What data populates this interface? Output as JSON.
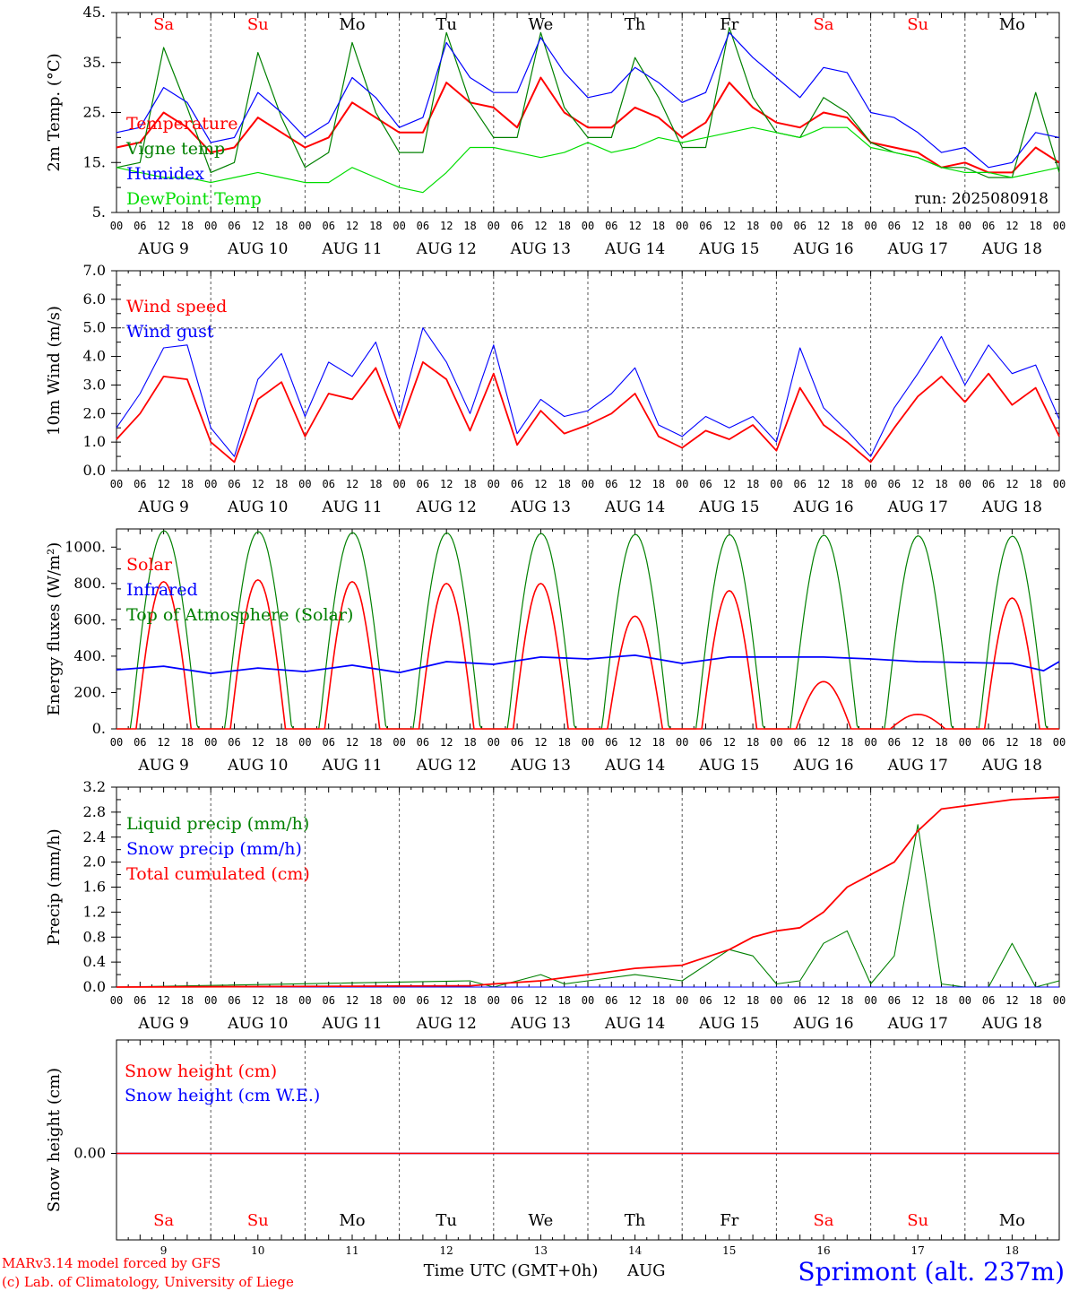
{
  "footer": {
    "credit_line1": "MARv3.14 model forced by GFS",
    "credit_line2": "(c) Lab. of Climatology, University of Liege",
    "xaxis_title": "Time UTC (GMT+0h)",
    "month": "AUG",
    "location": "Sprimont (alt. 237m)"
  },
  "colors": {
    "red": "#ff0000",
    "green": "#008000",
    "blue": "#0000ff",
    "lightgreen": "#00dd00",
    "grid": "#555555"
  },
  "days": [
    {
      "abbr": "Sa",
      "date": "AUG  9",
      "num": "9",
      "weekend": true
    },
    {
      "abbr": "Su",
      "date": "AUG 10",
      "num": "10",
      "weekend": true
    },
    {
      "abbr": "Mo",
      "date": "AUG 11",
      "num": "11",
      "weekend": false
    },
    {
      "abbr": "Tu",
      "date": "AUG 12",
      "num": "12",
      "weekend": false
    },
    {
      "abbr": "We",
      "date": "AUG 13",
      "num": "13",
      "weekend": false
    },
    {
      "abbr": "Th",
      "date": "AUG 14",
      "num": "14",
      "weekend": false
    },
    {
      "abbr": "Fr",
      "date": "AUG 15",
      "num": "15",
      "weekend": false
    },
    {
      "abbr": "Sa",
      "date": "AUG 16",
      "num": "16",
      "weekend": true
    },
    {
      "abbr": "Su",
      "date": "AUG 17",
      "num": "17",
      "weekend": true
    },
    {
      "abbr": "Mo",
      "date": "AUG 18",
      "num": "18",
      "weekend": false
    }
  ],
  "hour_ticks": [
    "00",
    "06",
    "12",
    "18"
  ],
  "chart_data": [
    {
      "type": "line",
      "id": "temp",
      "ylabel": "2m Temp. (°C)",
      "ylim": [
        5,
        45
      ],
      "yticks": [
        {
          "v": 45,
          "label": "45."
        },
        {
          "v": 35,
          "label": "35."
        },
        {
          "v": 25,
          "label": "25."
        },
        {
          "v": 15,
          "label": "15."
        },
        {
          "v": 5,
          "label": "5."
        }
      ],
      "annotation": "run: 2025080918",
      "x_hours": [
        0,
        6,
        12,
        18,
        24,
        30,
        36,
        42,
        48,
        54,
        60,
        66,
        72,
        78,
        84,
        90,
        96,
        102,
        108,
        114,
        120,
        126,
        132,
        138,
        144,
        150,
        156,
        162,
        168,
        174,
        180,
        186,
        192,
        198,
        204,
        210,
        216,
        222,
        228,
        234,
        240
      ],
      "series": [
        {
          "name": "Temperature",
          "color": "red",
          "values": [
            18,
            19,
            25,
            22,
            17,
            18,
            24,
            21,
            18,
            20,
            27,
            24,
            21,
            21,
            31,
            27,
            26,
            22,
            32,
            25,
            22,
            22,
            26,
            24,
            20,
            23,
            31,
            26,
            23,
            22,
            25,
            24,
            19,
            18,
            17,
            14,
            15,
            13,
            13,
            18,
            15
          ]
        },
        {
          "name": "Vigne temp",
          "color": "green",
          "values": [
            14,
            15,
            38,
            26,
            13,
            15,
            37,
            24,
            14,
            17,
            39,
            25,
            17,
            17,
            41,
            27,
            20,
            20,
            41,
            26,
            20,
            20,
            36,
            28,
            18,
            18,
            42,
            28,
            21,
            20,
            28,
            25,
            19,
            17,
            16,
            14,
            14,
            12,
            12,
            29,
            13
          ]
        },
        {
          "name": "Humidex",
          "color": "blue",
          "values": [
            21,
            22,
            30,
            27,
            19,
            20,
            29,
            25,
            20,
            23,
            32,
            28,
            22,
            24,
            39,
            32,
            29,
            29,
            40,
            33,
            28,
            29,
            34,
            31,
            27,
            29,
            41,
            36,
            32,
            28,
            34,
            33,
            25,
            24,
            21,
            17,
            18,
            14,
            15,
            21,
            20
          ]
        },
        {
          "name": "DewPoint Temp",
          "color": "lightgreen",
          "values": [
            14,
            13,
            12,
            12,
            11,
            12,
            13,
            12,
            11,
            11,
            14,
            12,
            10,
            9,
            13,
            18,
            18,
            17,
            16,
            17,
            19,
            17,
            18,
            20,
            19,
            20,
            21,
            22,
            21,
            20,
            22,
            22,
            18,
            17,
            16,
            14,
            13,
            13,
            12,
            13,
            14
          ]
        }
      ]
    },
    {
      "type": "line",
      "id": "wind",
      "ylabel": "10m Wind (m/s)",
      "ylim": [
        0,
        7
      ],
      "yticks": [
        {
          "v": 7,
          "label": "7.0"
        },
        {
          "v": 6,
          "label": "6.0"
        },
        {
          "v": 5,
          "label": "5.0"
        },
        {
          "v": 4,
          "label": "4.0"
        },
        {
          "v": 3,
          "label": "3.0"
        },
        {
          "v": 2,
          "label": "2.0"
        },
        {
          "v": 1,
          "label": "1.0"
        },
        {
          "v": 0,
          "label": "0.0"
        }
      ],
      "ref_line": 5,
      "x_hours": [
        0,
        6,
        12,
        18,
        24,
        30,
        36,
        42,
        48,
        54,
        60,
        66,
        72,
        78,
        84,
        90,
        96,
        102,
        108,
        114,
        120,
        126,
        132,
        138,
        144,
        150,
        156,
        162,
        168,
        174,
        180,
        186,
        192,
        198,
        204,
        210,
        216,
        222,
        228,
        234,
        240
      ],
      "series": [
        {
          "name": "Wind speed",
          "color": "red",
          "values": [
            1.1,
            2.0,
            3.3,
            3.2,
            1.0,
            0.3,
            2.5,
            3.1,
            1.2,
            2.7,
            2.5,
            3.6,
            1.5,
            3.8,
            3.2,
            1.4,
            3.4,
            0.9,
            2.1,
            1.3,
            1.6,
            2.0,
            2.7,
            1.2,
            0.8,
            1.4,
            1.1,
            1.6,
            0.7,
            2.9,
            1.6,
            1.0,
            0.3,
            1.5,
            2.6,
            3.3,
            2.4,
            3.4,
            2.3,
            2.9,
            1.2
          ]
        },
        {
          "name": "Wind gust",
          "color": "blue",
          "values": [
            1.5,
            2.7,
            4.3,
            4.4,
            1.5,
            0.5,
            3.2,
            4.1,
            1.9,
            3.8,
            3.3,
            4.5,
            1.9,
            5.0,
            3.8,
            2.0,
            4.4,
            1.3,
            2.5,
            1.9,
            2.1,
            2.7,
            3.6,
            1.6,
            1.2,
            1.9,
            1.5,
            1.9,
            1.0,
            4.3,
            2.2,
            1.4,
            0.5,
            2.2,
            3.4,
            4.7,
            3.0,
            4.4,
            3.4,
            3.7,
            1.8
          ]
        }
      ]
    },
    {
      "type": "line",
      "id": "energy",
      "ylabel": "Energy fluxes (W/m²)",
      "ylim": [
        0,
        1100
      ],
      "yticks": [
        {
          "v": 1000,
          "label": "1000."
        },
        {
          "v": 800,
          "label": "800."
        },
        {
          "v": 600,
          "label": "600."
        },
        {
          "v": 400,
          "label": "400."
        },
        {
          "v": 200,
          "label": "200."
        },
        {
          "v": 0,
          "label": "0."
        }
      ],
      "solar_peaks": [
        810,
        820,
        810,
        800,
        800,
        620,
        760,
        260,
        80,
        720
      ],
      "toa_peaks": [
        1090,
        1085,
        1080,
        1078,
        1075,
        1070,
        1068,
        1065,
        1062,
        1060
      ],
      "infrared": {
        "x_hours": [
          0,
          12,
          24,
          36,
          48,
          60,
          72,
          84,
          96,
          108,
          120,
          132,
          144,
          156,
          168,
          180,
          192,
          204,
          216,
          228,
          236,
          240
        ],
        "values": [
          325,
          345,
          305,
          335,
          315,
          350,
          310,
          370,
          355,
          395,
          385,
          405,
          360,
          395,
          395,
          395,
          385,
          370,
          365,
          360,
          320,
          370
        ]
      },
      "series": [
        {
          "name": "Solar",
          "color": "red"
        },
        {
          "name": "Infrared",
          "color": "blue"
        },
        {
          "name": "Top of Atmosphere (Solar)",
          "color": "green"
        }
      ]
    },
    {
      "type": "line",
      "id": "precip",
      "ylabel": "Precip (mm/h)",
      "ylim": [
        0,
        3.2
      ],
      "yticks": [
        {
          "v": 3.2,
          "label": "3.2"
        },
        {
          "v": 2.8,
          "label": "2.8"
        },
        {
          "v": 2.4,
          "label": "2.4"
        },
        {
          "v": 2.0,
          "label": "2.0"
        },
        {
          "v": 1.6,
          "label": "1.6"
        },
        {
          "v": 1.2,
          "label": "1.2"
        },
        {
          "v": 0.8,
          "label": "0.8"
        },
        {
          "v": 0.4,
          "label": "0.4"
        },
        {
          "v": 0.0,
          "label": "0.0"
        }
      ],
      "x_hours": [
        0,
        90,
        96,
        108,
        114,
        120,
        132,
        144,
        156,
        162,
        168,
        174,
        180,
        186,
        192,
        198,
        204,
        210,
        216,
        222,
        228,
        234,
        240
      ],
      "series": [
        {
          "name": "Liquid precip (mm/h)",
          "color": "green",
          "values": [
            0,
            0.1,
            0,
            0.2,
            0.05,
            0.1,
            0.2,
            0.1,
            0.6,
            0.5,
            0.05,
            0.1,
            0.7,
            0.9,
            0.05,
            0.5,
            2.6,
            0.05,
            0,
            0,
            0.7,
            0,
            0.1
          ]
        },
        {
          "name": "Snow precip (mm/h)",
          "color": "blue",
          "values": [
            0,
            0,
            0,
            0,
            0,
            0,
            0,
            0,
            0,
            0,
            0,
            0,
            0,
            0,
            0,
            0,
            0,
            0,
            0,
            0,
            0,
            0,
            0
          ]
        },
        {
          "name": "Total cumulated (cm)",
          "color": "red",
          "values": [
            0,
            0.02,
            0.05,
            0.1,
            0.15,
            0.2,
            0.3,
            0.35,
            0.6,
            0.8,
            0.9,
            0.95,
            1.2,
            1.6,
            1.8,
            2.0,
            2.5,
            2.85,
            2.9,
            2.95,
            3.0,
            3.02,
            3.04
          ]
        }
      ]
    },
    {
      "type": "line",
      "id": "snow",
      "ylabel": "Snow height (cm)",
      "yticks": [
        {
          "v": 0,
          "label": "0.00"
        }
      ],
      "series": [
        {
          "name": "Snow height (cm)",
          "color": "red",
          "values": [
            0,
            0
          ]
        },
        {
          "name": "Snow height (cm W.E.)",
          "color": "blue",
          "values": [
            0,
            0
          ]
        }
      ]
    }
  ]
}
